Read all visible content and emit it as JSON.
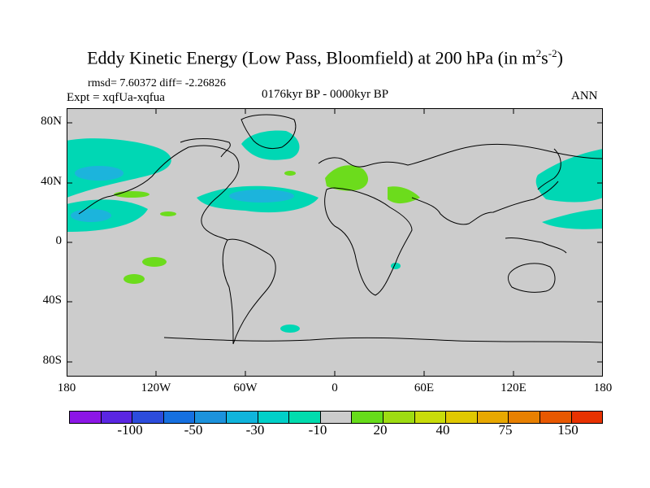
{
  "title": {
    "main": "Eddy Kinetic Energy (Low Pass, Bloomfield) at 200 hPa (in m",
    "sup1": "2",
    "mid": "s",
    "sup2": "-2",
    "end": ")"
  },
  "stats": "rmsd= 7.60372 diff= -2.26826",
  "expt": "Expt = xqfUa-xqfua",
  "period": "0176kyr BP - 0000kyr BP",
  "season": "ANN",
  "y_ticks": [
    "80N",
    "40N",
    "0",
    "40S",
    "80S"
  ],
  "x_ticks": [
    "180",
    "120W",
    "60W",
    "0",
    "60E",
    "120E",
    "180"
  ],
  "colorbar_labels": [
    "-100",
    "-50",
    "-30",
    "-10",
    "20",
    "40",
    "75",
    "150"
  ],
  "colors": {
    "land_ocean": "#cccccc",
    "anomaly_neg_small": "#00d7b4",
    "anomaly_neg_medium": "#1cb4dc",
    "anomaly_pos_small": "#6cdc1c",
    "palette": [
      "#8c16e6",
      "#5a26e2",
      "#2c4cdc",
      "#1670e0",
      "#1c92dc",
      "#10b4dc",
      "#00d0c8",
      "#00dcae",
      "#cccccc",
      "#66dc1a",
      "#9edc12",
      "#c8dc0a",
      "#e0c800",
      "#e8a800",
      "#e88000",
      "#e85800",
      "#e83200"
    ]
  }
}
